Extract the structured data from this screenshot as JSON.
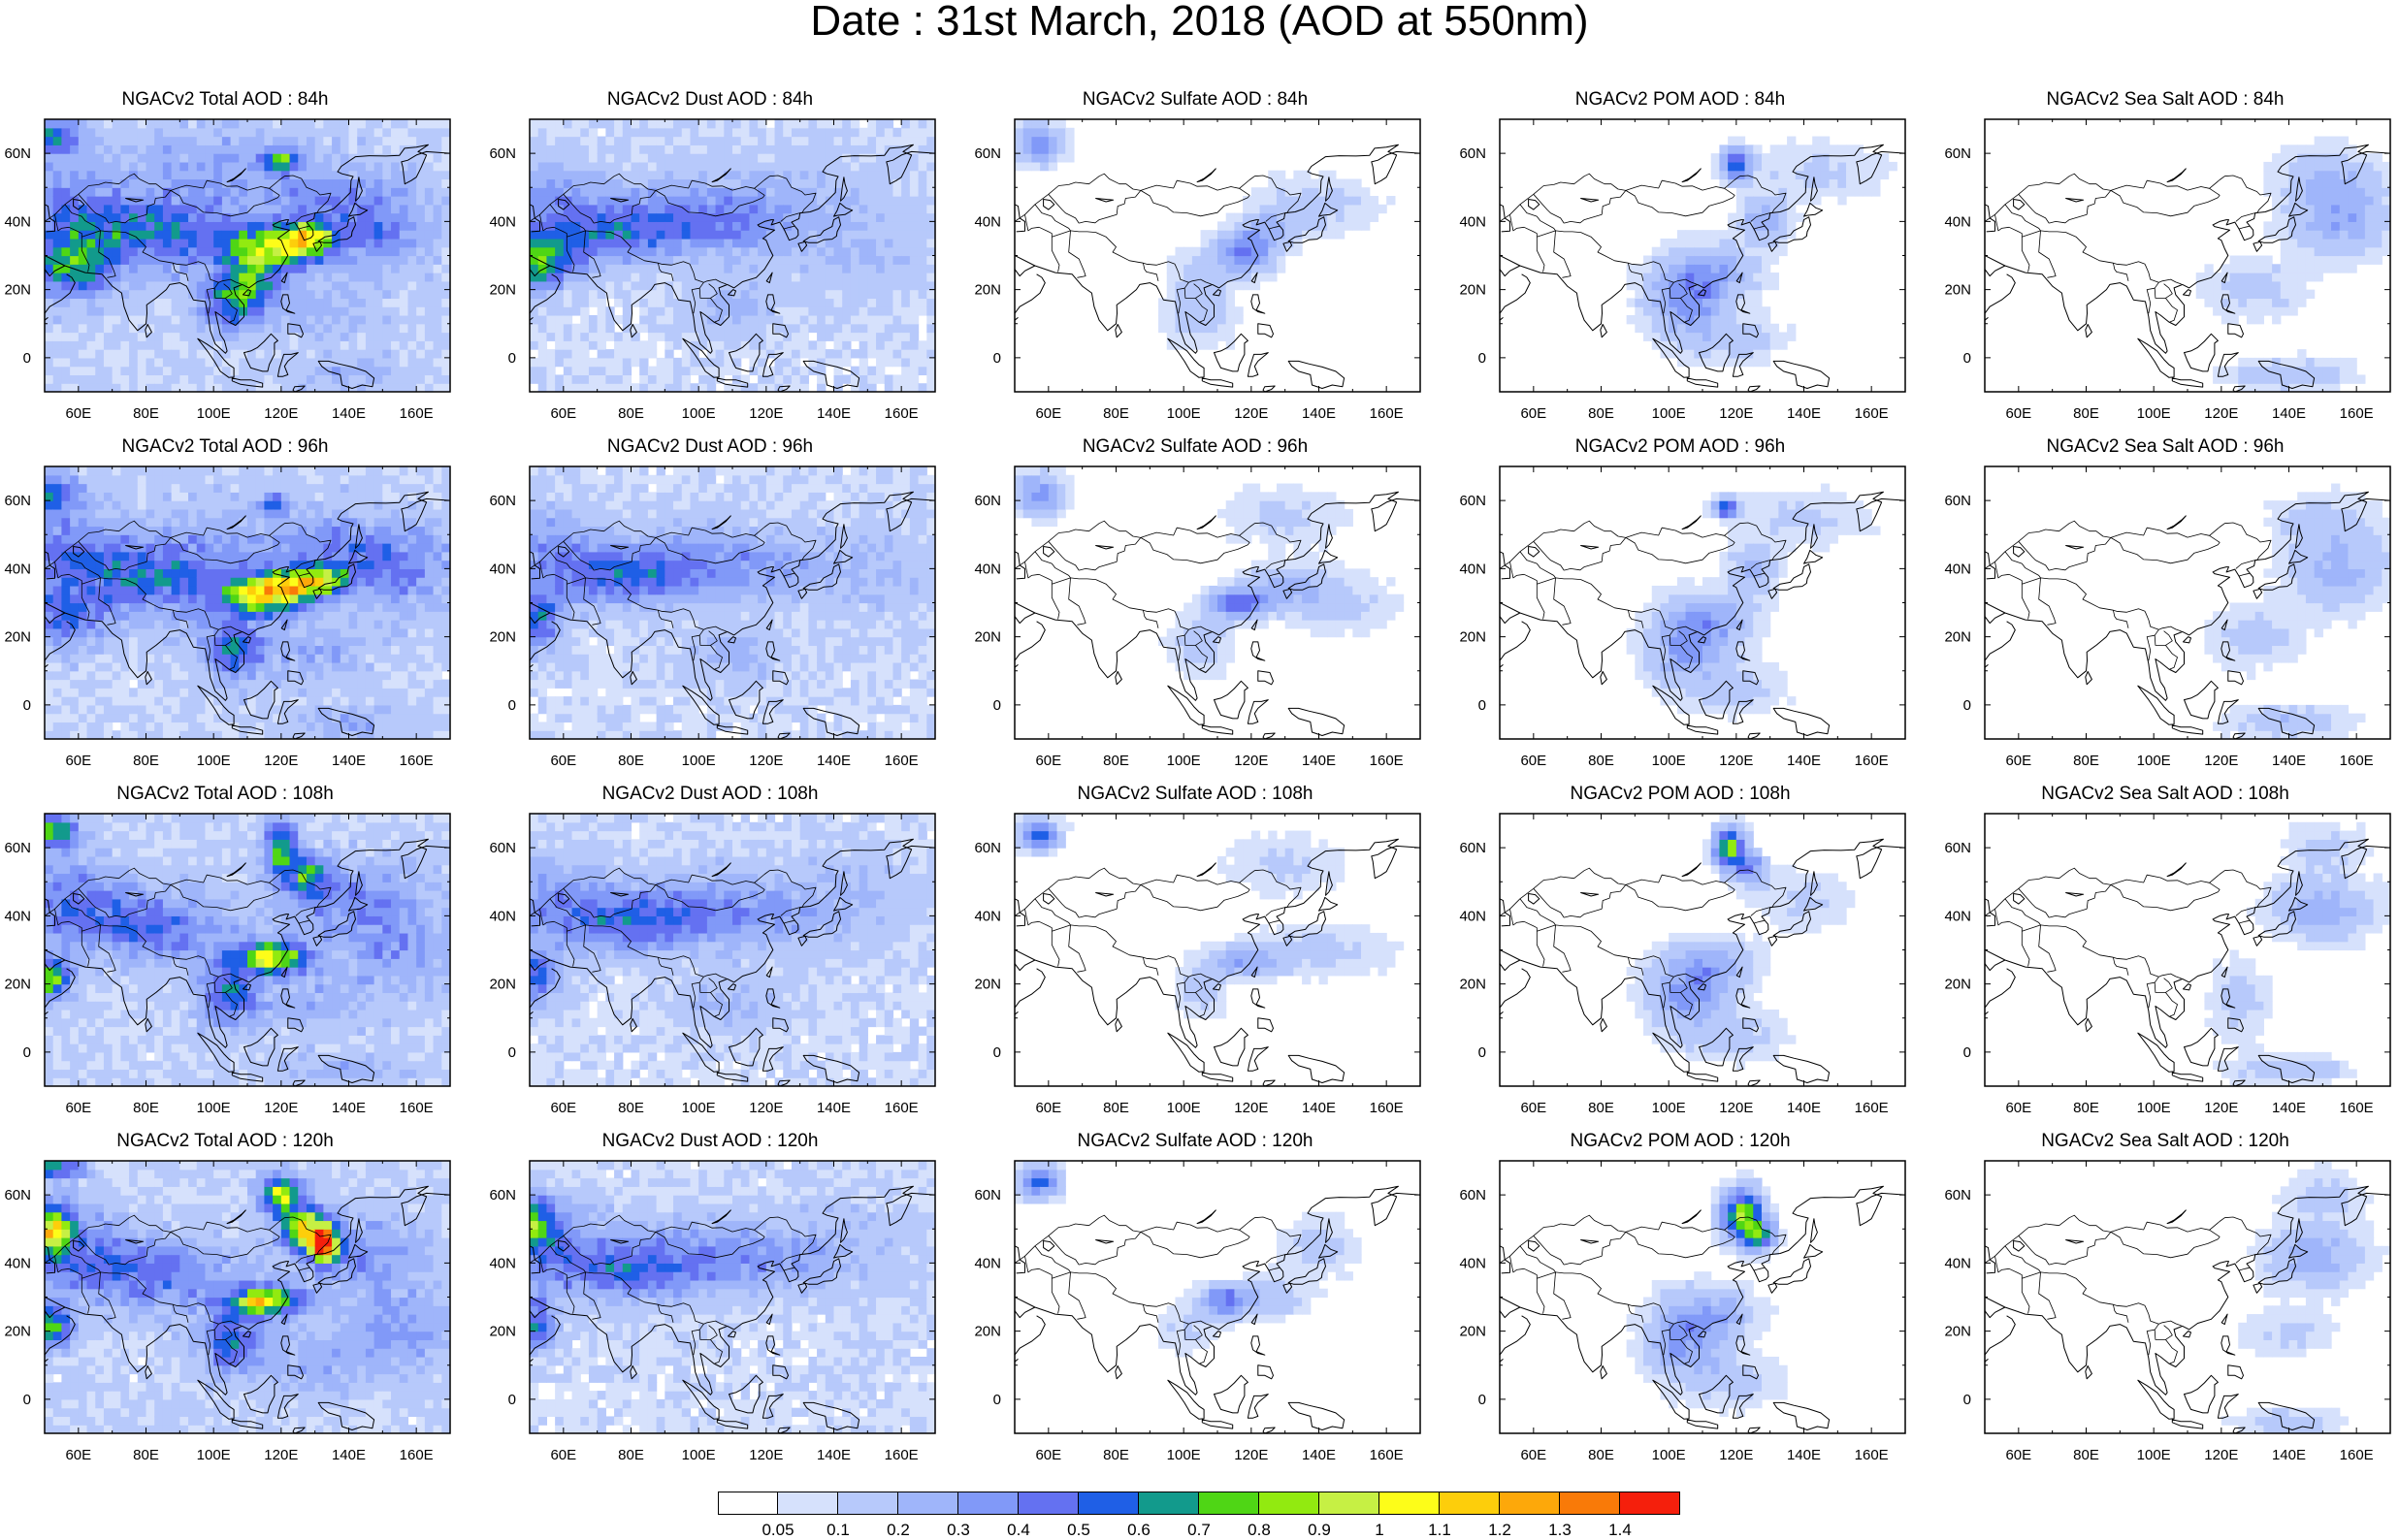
{
  "figure": {
    "title": "Date : 31st March, 2018 (AOD at 550nm)",
    "x_ticks": [
      "60E",
      "80E",
      "100E",
      "120E",
      "140E",
      "160E"
    ],
    "y_ticks": [
      "60N",
      "40N",
      "20N",
      "0"
    ],
    "lon_range": [
      50,
      170
    ],
    "lat_range": [
      -10,
      70
    ]
  },
  "panels": [
    {
      "title": "NGACv2 Total AOD : 84h",
      "species": "total",
      "lead_hour": 84
    },
    {
      "title": "NGACv2 Dust AOD : 84h",
      "species": "dust",
      "lead_hour": 84
    },
    {
      "title": "NGACv2 Sulfate AOD : 84h",
      "species": "sulfate",
      "lead_hour": 84
    },
    {
      "title": "NGACv2 POM AOD : 84h",
      "species": "pom",
      "lead_hour": 84
    },
    {
      "title": "NGACv2 Sea Salt AOD : 84h",
      "species": "seasalt",
      "lead_hour": 84
    },
    {
      "title": "NGACv2 Total AOD : 96h",
      "species": "total",
      "lead_hour": 96
    },
    {
      "title": "NGACv2 Dust AOD : 96h",
      "species": "dust",
      "lead_hour": 96
    },
    {
      "title": "NGACv2 Sulfate AOD : 96h",
      "species": "sulfate",
      "lead_hour": 96
    },
    {
      "title": "NGACv2 POM AOD : 96h",
      "species": "pom",
      "lead_hour": 96
    },
    {
      "title": "NGACv2 Sea Salt AOD : 96h",
      "species": "seasalt",
      "lead_hour": 96
    },
    {
      "title": "NGACv2 Total AOD : 108h",
      "species": "total",
      "lead_hour": 108
    },
    {
      "title": "NGACv2 Dust AOD : 108h",
      "species": "dust",
      "lead_hour": 108
    },
    {
      "title": "NGACv2 Sulfate AOD : 108h",
      "species": "sulfate",
      "lead_hour": 108
    },
    {
      "title": "NGACv2 POM AOD : 108h",
      "species": "pom",
      "lead_hour": 108
    },
    {
      "title": "NGACv2 Sea Salt AOD : 108h",
      "species": "seasalt",
      "lead_hour": 108
    },
    {
      "title": "NGACv2 Total AOD : 120h",
      "species": "total",
      "lead_hour": 120
    },
    {
      "title": "NGACv2 Dust AOD : 120h",
      "species": "dust",
      "lead_hour": 120
    },
    {
      "title": "NGACv2 Sulfate AOD : 120h",
      "species": "sulfate",
      "lead_hour": 120
    },
    {
      "title": "NGACv2 POM AOD : 120h",
      "species": "pom",
      "lead_hour": 120
    },
    {
      "title": "NGACv2 Sea Salt  AOD : 120h",
      "species": "seasalt",
      "lead_hour": 120
    }
  ],
  "colorbar": {
    "levels": [
      "0.05",
      "0.1",
      "0.2",
      "0.3",
      "0.4",
      "0.5",
      "0.6",
      "0.7",
      "0.8",
      "0.9",
      "1",
      "1.1",
      "1.2",
      "1.3",
      "1.4"
    ],
    "colors": [
      "#ffffff",
      "#d6e1fc",
      "#b7c9fb",
      "#9fb5fa",
      "#8199f8",
      "#6471f1",
      "#1f5fe6",
      "#129a8c",
      "#4fd615",
      "#92ea10",
      "#c6f044",
      "#fdfd19",
      "#fdce0b",
      "#fda80a",
      "#f97a08",
      "#f51f0c"
    ]
  }
}
